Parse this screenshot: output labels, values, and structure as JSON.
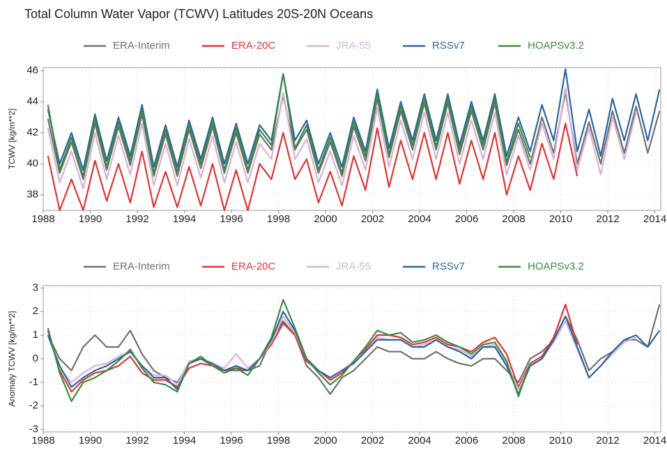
{
  "chart_data": [
    {
      "type": "line",
      "title": "Total Column Water Vapor (TCWV) Latitudes 20S-20N Oceans",
      "ylabel": "TCWV [kg/m**2]",
      "x": [
        1988.2,
        1988.7,
        1989.2,
        1989.7,
        1990.2,
        1990.7,
        1991.2,
        1991.7,
        1992.2,
        1992.7,
        1993.2,
        1993.7,
        1994.2,
        1994.7,
        1995.2,
        1995.7,
        1996.2,
        1996.7,
        1997.2,
        1997.7,
        1998.2,
        1998.7,
        1999.2,
        1999.7,
        2000.2,
        2000.7,
        2001.2,
        2001.7,
        2002.2,
        2002.7,
        2003.2,
        2003.7,
        2004.2,
        2004.7,
        2005.2,
        2005.7,
        2006.2,
        2006.7,
        2007.2,
        2007.7,
        2008.2,
        2008.7,
        2009.2,
        2009.7,
        2010.2,
        2010.7,
        2011.2,
        2011.7,
        2012.2,
        2012.7,
        2013.2,
        2013.7,
        2014.2
      ],
      "series": [
        {
          "name": "ERA-Interim",
          "color": "#707070",
          "values": [
            42.9,
            39.4,
            41.4,
            39.0,
            42.6,
            39.6,
            42.4,
            39.9,
            43.2,
            39.2,
            41.9,
            39.2,
            42.2,
            39.7,
            42.4,
            39.4,
            42.0,
            39.4,
            41.9,
            40.9,
            44.4,
            40.9,
            42.2,
            39.4,
            41.4,
            39.2,
            42.4,
            40.2,
            44.2,
            40.4,
            43.4,
            40.9,
            43.9,
            40.9,
            43.9,
            40.6,
            43.4,
            40.9,
            43.9,
            39.9,
            42.2,
            40.0,
            43.0,
            40.7,
            44.6,
            40.0,
            42.7,
            40.0,
            43.4,
            40.7,
            43.7,
            40.7,
            43.4
          ]
        },
        {
          "name": "ERA-20C",
          "color": "#d93636",
          "values": [
            40.5,
            37.0,
            39.0,
            37.0,
            40.2,
            37.6,
            40.0,
            37.5,
            40.8,
            37.2,
            39.5,
            37.2,
            39.8,
            37.3,
            40.0,
            37.0,
            39.6,
            37.0,
            40.0,
            39.0,
            42.0,
            39.0,
            40.3,
            37.5,
            39.5,
            37.3,
            40.5,
            38.3,
            42.3,
            38.5,
            41.5,
            39.0,
            42.0,
            39.0,
            42.0,
            38.7,
            41.5,
            39.0,
            42.0,
            38.0,
            40.5,
            38.3,
            41.3,
            39.0,
            42.6,
            39.2,
            null,
            null,
            null,
            null,
            null,
            null,
            null
          ]
        },
        {
          "name": "JRA-55",
          "color": "#d5b3d3",
          "values": [
            42.3,
            38.8,
            40.8,
            38.4,
            42.0,
            39.0,
            41.8,
            39.3,
            42.6,
            38.6,
            41.3,
            38.6,
            41.6,
            39.1,
            41.8,
            38.8,
            41.4,
            38.8,
            41.3,
            40.3,
            44.6,
            40.3,
            41.6,
            38.8,
            40.8,
            38.6,
            41.8,
            39.6,
            43.6,
            39.8,
            42.8,
            40.3,
            43.3,
            40.3,
            43.3,
            40.0,
            42.8,
            40.3,
            43.3,
            39.3,
            41.8,
            39.6,
            42.6,
            40.3,
            44.9,
            39.6,
            42.3,
            39.3,
            43.0,
            40.3,
            43.3,
            null,
            null
          ]
        },
        {
          "name": "RSSv7",
          "color": "#2d64a0",
          "values": [
            43.5,
            40.0,
            42.0,
            39.6,
            43.2,
            40.2,
            43.0,
            40.5,
            43.8,
            39.8,
            42.5,
            39.8,
            42.8,
            40.3,
            43.0,
            40.0,
            42.6,
            40.0,
            42.5,
            41.5,
            45.8,
            41.5,
            42.8,
            40.0,
            42.0,
            39.8,
            43.0,
            40.8,
            44.8,
            41.0,
            44.0,
            41.5,
            44.5,
            41.5,
            44.5,
            41.2,
            44.0,
            41.5,
            44.5,
            40.5,
            43.0,
            40.8,
            43.8,
            41.5,
            46.1,
            40.8,
            43.5,
            40.5,
            44.2,
            41.5,
            44.5,
            41.5,
            44.8
          ]
        },
        {
          "name": "HOAPSv3.2",
          "color": "#3b8a3e",
          "values": [
            43.8,
            39.6,
            41.7,
            39.2,
            42.9,
            39.8,
            42.7,
            40.2,
            43.5,
            39.4,
            42.2,
            39.5,
            42.5,
            40.0,
            42.7,
            39.6,
            42.3,
            39.6,
            42.2,
            41.2,
            45.8,
            41.0,
            42.5,
            39.6,
            41.7,
            39.4,
            42.7,
            40.5,
            44.5,
            40.6,
            43.7,
            41.2,
            44.2,
            41.1,
            44.2,
            40.9,
            43.7,
            41.2,
            44.2,
            40.1,
            42.6,
            40.4,
            null,
            null,
            null,
            null,
            null,
            null,
            null,
            null,
            null,
            null,
            null
          ]
        }
      ],
      "xlim": [
        1988,
        2014.25
      ],
      "xticks": [
        1988,
        1990,
        1992,
        1994,
        1996,
        1998,
        2000,
        2002,
        2004,
        2006,
        2008,
        2010,
        2012,
        2014
      ],
      "ylim": [
        37,
        46.2
      ],
      "yticks": [
        38,
        40,
        42,
        44,
        46
      ],
      "grid": true
    },
    {
      "type": "line",
      "ylabel": "Anomaly TCWV [kg/m**2]",
      "x": [
        1988.2,
        1988.7,
        1989.2,
        1989.7,
        1990.2,
        1990.7,
        1991.2,
        1991.7,
        1992.2,
        1992.7,
        1993.2,
        1993.7,
        1994.2,
        1994.7,
        1995.2,
        1995.7,
        1996.2,
        1996.7,
        1997.2,
        1997.7,
        1998.2,
        1998.7,
        1999.2,
        1999.7,
        2000.2,
        2000.7,
        2001.2,
        2001.7,
        2002.2,
        2002.7,
        2003.2,
        2003.7,
        2004.2,
        2004.7,
        2005.2,
        2005.7,
        2006.2,
        2006.7,
        2007.2,
        2007.7,
        2008.2,
        2008.7,
        2009.2,
        2009.7,
        2010.2,
        2010.7,
        2011.2,
        2011.7,
        2012.2,
        2012.7,
        2013.2,
        2013.7,
        2014.2
      ],
      "series": [
        {
          "name": "ERA-Interim",
          "color": "#707070",
          "values": [
            1.0,
            0.0,
            -0.5,
            0.5,
            1.0,
            0.5,
            0.5,
            1.2,
            0.2,
            -0.5,
            -0.8,
            -1.0,
            -0.2,
            0.0,
            -0.3,
            -0.5,
            -0.5,
            -0.5,
            -0.3,
            0.8,
            1.6,
            1.0,
            -0.3,
            -0.8,
            -1.5,
            -0.8,
            -0.5,
            0.0,
            0.5,
            0.3,
            0.3,
            0.0,
            0.0,
            0.3,
            0.0,
            -0.2,
            -0.3,
            0.0,
            0.0,
            -0.5,
            -1.0,
            0.0,
            0.3,
            0.8,
            1.8,
            0.8,
            -0.5,
            0.0,
            0.3,
            0.8,
            0.8,
            0.5,
            2.3
          ]
        },
        {
          "name": "ERA-20C",
          "color": "#d93636",
          "values": [
            1.2,
            -0.5,
            -1.4,
            -0.9,
            -0.6,
            -0.5,
            -0.3,
            0.1,
            -0.6,
            -0.9,
            -0.9,
            -1.2,
            -0.4,
            -0.2,
            -0.3,
            -0.5,
            -0.4,
            -0.5,
            0.0,
            0.6,
            1.5,
            1.0,
            -0.1,
            -0.5,
            -0.9,
            -0.6,
            -0.1,
            0.4,
            1.0,
            1.0,
            0.9,
            0.6,
            0.7,
            0.9,
            0.6,
            0.5,
            0.3,
            0.7,
            0.9,
            0.2,
            -1.2,
            -0.2,
            0.1,
            0.9,
            2.3,
            0.6,
            null,
            null,
            null,
            null,
            null,
            null,
            null
          ]
        },
        {
          "name": "JRA-55",
          "color": "#d5b3d3",
          "values": [
            1.0,
            -0.4,
            -1.0,
            -0.6,
            -0.3,
            -0.2,
            0.1,
            0.3,
            -0.3,
            -0.7,
            -0.7,
            -1.1,
            -0.1,
            0.0,
            -0.2,
            -0.4,
            0.2,
            -0.4,
            0.0,
            0.7,
            1.8,
            1.1,
            0.0,
            -0.5,
            -0.8,
            -0.5,
            -0.1,
            0.3,
            0.9,
            0.8,
            0.8,
            0.5,
            0.6,
            0.8,
            0.5,
            0.4,
            0.1,
            0.5,
            0.6,
            -0.2,
            -1.3,
            -0.3,
            0.0,
            0.7,
            1.6,
            0.4,
            -0.8,
            -0.3,
            0.2,
            0.7,
            0.9,
            null,
            null
          ]
        },
        {
          "name": "RSSv7",
          "color": "#2d64a0",
          "values": [
            1.0,
            -0.3,
            -1.2,
            -0.8,
            -0.5,
            -0.3,
            0.0,
            0.3,
            -0.3,
            -0.8,
            -0.8,
            -1.3,
            -0.2,
            0.0,
            -0.2,
            -0.5,
            -0.3,
            -0.5,
            0.0,
            0.8,
            2.0,
            1.2,
            0.0,
            -0.5,
            -0.8,
            -0.5,
            -0.2,
            0.3,
            0.8,
            0.8,
            0.8,
            0.5,
            0.5,
            0.8,
            0.5,
            0.3,
            0.0,
            0.5,
            0.5,
            -0.3,
            -1.5,
            -0.3,
            0.0,
            0.8,
            1.8,
            0.5,
            -0.8,
            -0.3,
            0.3,
            0.8,
            1.0,
            0.5,
            1.2
          ]
        },
        {
          "name": "HOAPSv3.2",
          "color": "#3b8a3e",
          "values": [
            1.3,
            -0.6,
            -1.8,
            -1.0,
            -0.8,
            -0.5,
            -0.1,
            0.4,
            -0.4,
            -1.0,
            -1.1,
            -1.4,
            -0.2,
            0.1,
            -0.3,
            -0.6,
            -0.4,
            -0.7,
            0.0,
            0.9,
            2.5,
            1.3,
            0.0,
            -0.6,
            -1.1,
            -0.7,
            -0.1,
            0.5,
            1.2,
            1.0,
            1.1,
            0.7,
            0.8,
            1.0,
            0.7,
            0.5,
            0.2,
            0.6,
            0.7,
            -0.1,
            -1.6,
            -0.2,
            null,
            null,
            null,
            null,
            null,
            null,
            null,
            null,
            null,
            null,
            null
          ]
        }
      ],
      "xlim": [
        1988,
        2014.25
      ],
      "xticks": [
        1988,
        1990,
        1992,
        1994,
        1996,
        1998,
        2000,
        2002,
        2004,
        2006,
        2008,
        2010,
        2012,
        2014
      ],
      "ylim": [
        -3.1,
        3.1
      ],
      "yticks": [
        -3,
        -2,
        -1,
        0,
        1,
        2,
        3
      ],
      "grid": true
    }
  ]
}
